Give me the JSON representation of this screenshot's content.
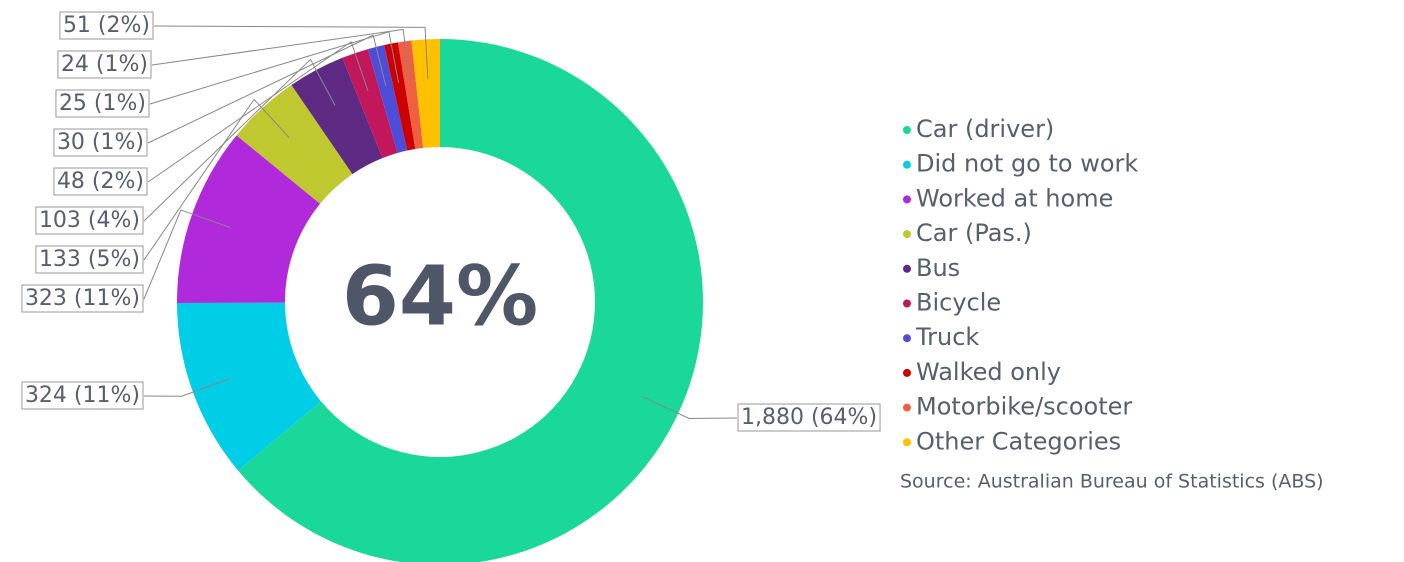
{
  "chart_data": {
    "type": "donut",
    "center_label": "64%",
    "categories": [
      "Car (driver)",
      "Did not go to work",
      "Worked at home",
      "Car (Pas.)",
      "Bus",
      "Bicycle",
      "Truck",
      "Walked only",
      "Motorbike/scooter",
      "Other Categories"
    ],
    "values": [
      1880,
      324,
      323,
      133,
      103,
      48,
      30,
      25,
      24,
      51
    ],
    "value_labels": [
      "1,880 (64%)",
      "324 (11%)",
      "323 (11%)",
      "133 (5%)",
      "103 (4%)",
      "48 (2%)",
      "30 (1%)",
      "25 (1%)",
      "24 (1%)",
      "51 (2%)"
    ],
    "colors": [
      "#19d89a",
      "#00cde6",
      "#b02adb",
      "#bfc82e",
      "#5e2a84",
      "#c2185b",
      "#4d4dd9",
      "#cc0000",
      "#f06040",
      "#ffc000"
    ],
    "legend": "right",
    "source": "Source: Australian Bureau of Statistics (ABS)"
  }
}
